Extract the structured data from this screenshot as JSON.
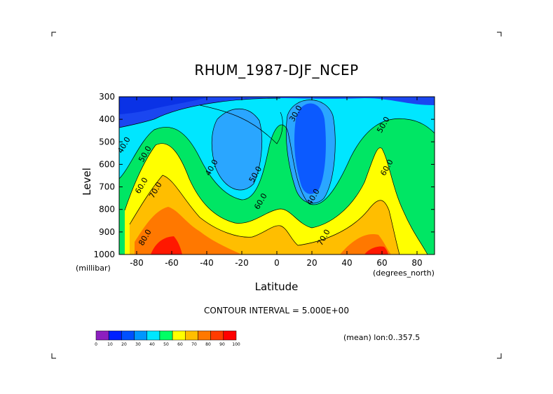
{
  "chart_data": {
    "type": "contour",
    "title": "RHUM_1987-DJF_NCEP",
    "xlabel": "Latitude",
    "ylabel": "Level",
    "x_unit": "(degrees_north)",
    "y_unit": "(millibar)",
    "xlim": [
      -90,
      90
    ],
    "ylim": [
      1000,
      300
    ],
    "x_ticks": [
      "-80",
      "-60",
      "-40",
      "-20",
      "0",
      "20",
      "40",
      "60",
      "80"
    ],
    "y_ticks": [
      "300",
      "400",
      "500",
      "600",
      "700",
      "800",
      "900",
      "1000"
    ],
    "contour_interval_label": "CONTOUR INTERVAL = 5.000E+00",
    "annotation": "(mean) lon:0..357.5",
    "contour_labels": [
      {
        "text": "40.0",
        "lat": -86,
        "lev": 520
      },
      {
        "text": "50.0",
        "lat": -74,
        "lev": 560
      },
      {
        "text": "60.0",
        "lat": -76,
        "lev": 700
      },
      {
        "text": "70.0",
        "lat": -68,
        "lev": 720
      },
      {
        "text": "80.0",
        "lat": -74,
        "lev": 930
      },
      {
        "text": "40.0",
        "lat": -36,
        "lev": 620
      },
      {
        "text": "50.0",
        "lat": -11,
        "lev": 650
      },
      {
        "text": "60.0",
        "lat": -8,
        "lev": 770
      },
      {
        "text": "30.0",
        "lat": 12,
        "lev": 380
      },
      {
        "text": "40.0",
        "lat": 22,
        "lev": 750
      },
      {
        "text": "70.0",
        "lat": 28,
        "lev": 930
      },
      {
        "text": "50.0",
        "lat": 62,
        "lev": 430
      },
      {
        "text": "60.0",
        "lat": 64,
        "lev": 620
      }
    ],
    "colorbar": {
      "levels": [
        "0",
        "10",
        "20",
        "30",
        "40",
        "50",
        "60",
        "70",
        "80",
        "90",
        "100"
      ],
      "colors": [
        "#8c1fbf",
        "#0020ff",
        "#0050ff",
        "#0096ff",
        "#00e6ff",
        "#00ff64",
        "#ffff00",
        "#ffbe00",
        "#ff7800",
        "#ff3c00",
        "#ff0000"
      ]
    },
    "field_colors": {
      "c15": "#0a32e6",
      "c25": "#1a46f0",
      "c30": "#0b5aff",
      "c35": "#2aa6ff",
      "c45": "#00e6ff",
      "c50": "#00e664",
      "c55": "#00ee64",
      "c60": "#ffff00",
      "c65": "#ffe400",
      "c70": "#ffbe00",
      "c75": "#ff9a00",
      "c80": "#ff7800",
      "c85": "#ff4c00",
      "c90": "#ff1800"
    }
  }
}
